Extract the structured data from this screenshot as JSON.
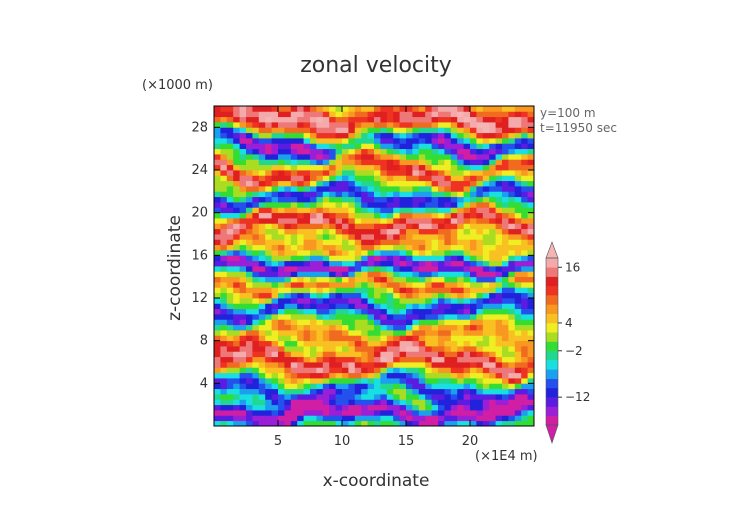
{
  "chart_data": {
    "type": "heatmap",
    "title": "zonal velocity",
    "xlabel": "x-coordinate",
    "ylabel": "z-coordinate",
    "x_unit": "(×1E4 m)",
    "z_unit": "(×1000 m)",
    "xlim": [
      0,
      25
    ],
    "ylim": [
      0,
      30
    ],
    "x_ticks": [
      5,
      10,
      15,
      20
    ],
    "y_ticks": [
      4,
      8,
      12,
      16,
      20,
      24,
      28
    ],
    "annotations": [
      "y=100 m",
      "t=11950 sec"
    ],
    "colorbar": {
      "tick_labels": [
        "16",
        "4",
        "−2",
        "−12"
      ],
      "tick_values": [
        16,
        4,
        -2,
        -12
      ],
      "extend": "both",
      "levels": [
        -18,
        -16,
        -14,
        -12,
        -10,
        -8,
        -6,
        -4,
        -2,
        0,
        2,
        4,
        6,
        8,
        10,
        12,
        14,
        16,
        18
      ],
      "colors": [
        "#d11fa5",
        "#9b1fd6",
        "#5a1ce0",
        "#2222dd",
        "#2450ee",
        "#1aa0ee",
        "#19e0e0",
        "#22d890",
        "#33dd33",
        "#aadd22",
        "#eeee22",
        "#f8c020",
        "#f89820",
        "#f06a20",
        "#ee3322",
        "#e02020",
        "#ee7777",
        "#f4aaaa"
      ],
      "under_color": "#d11fa5",
      "over_color": "#f5b5b5"
    },
    "field": {
      "nx": 50,
      "nz": 60,
      "bands": [
        {
          "z": 28.5,
          "value": 17.0,
          "half_width": 1.6,
          "x_wave": 0.6
        },
        {
          "z": 26.5,
          "value": -17.0,
          "half_width": 1.2,
          "x_wave": 0.9
        },
        {
          "z": 24.0,
          "value": 14.0,
          "half_width": 1.0,
          "x_wave": 1.2
        },
        {
          "z": 21.5,
          "value": -13.0,
          "half_width": 0.9,
          "x_wave": 0.8
        },
        {
          "z": 19.0,
          "value": 15.0,
          "half_width": 1.0,
          "x_wave": 0.7
        },
        {
          "z": 16.8,
          "value": 6.0,
          "half_width": 0.9,
          "x_wave": 0.5
        },
        {
          "z": 15.0,
          "value": -17.0,
          "half_width": 0.8,
          "x_wave": 0.4
        },
        {
          "z": 13.2,
          "value": 10.0,
          "half_width": 0.7,
          "x_wave": 0.6
        },
        {
          "z": 11.0,
          "value": -13.0,
          "half_width": 1.0,
          "x_wave": 0.9
        },
        {
          "z": 8.5,
          "value": 8.0,
          "half_width": 1.0,
          "x_wave": 1.0
        },
        {
          "z": 6.0,
          "value": 15.0,
          "half_width": 1.2,
          "x_wave": 0.8
        },
        {
          "z": 3.5,
          "value": -12.0,
          "half_width": 1.0,
          "x_wave": 1.1
        },
        {
          "z": 1.2,
          "value": -17.0,
          "half_width": 0.9,
          "x_wave": 0.5
        }
      ]
    }
  }
}
